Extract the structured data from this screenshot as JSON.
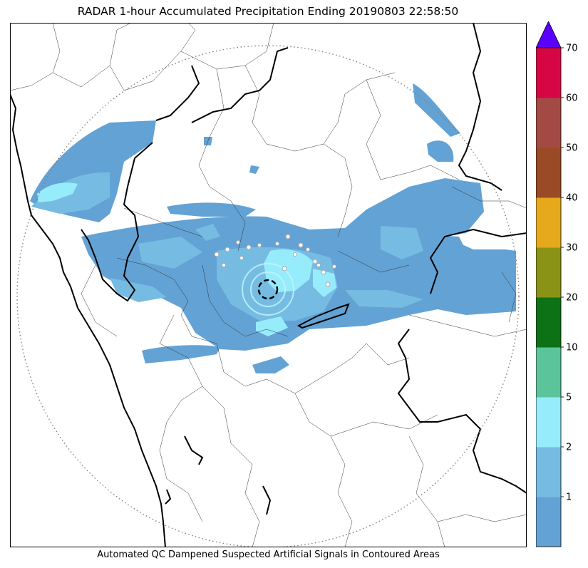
{
  "title": "RADAR 1-hour Accumulated Precipitation Ending 20190803 22:58:50",
  "caption": "Automated QC Dampened Suspected Artificial Signals in Contoured Areas",
  "colorbar": {
    "levels": [
      {
        "label": "",
        "color": "#63a2d4"
      },
      {
        "label": "1",
        "color": "#76bce2"
      },
      {
        "label": "2",
        "color": "#97ecfb"
      },
      {
        "label": "5",
        "color": "#5cc49b"
      },
      {
        "label": "10",
        "color": "#0d7115"
      },
      {
        "label": "20",
        "color": "#8b9317"
      },
      {
        "label": "30",
        "color": "#e7a91c"
      },
      {
        "label": "40",
        "color": "#9a4a24"
      },
      {
        "label": "50",
        "color": "#a44a44"
      },
      {
        "label": "60",
        "color": "#d60645"
      }
    ],
    "top_label": "70",
    "extend_color": "#5a00ff"
  },
  "colors": {
    "light_rain": "#63a2d4",
    "moderate_rain": "#76bce2",
    "heavier_rain": "#97ecfb",
    "border": "#000000",
    "range_ring": "#808080"
  }
}
